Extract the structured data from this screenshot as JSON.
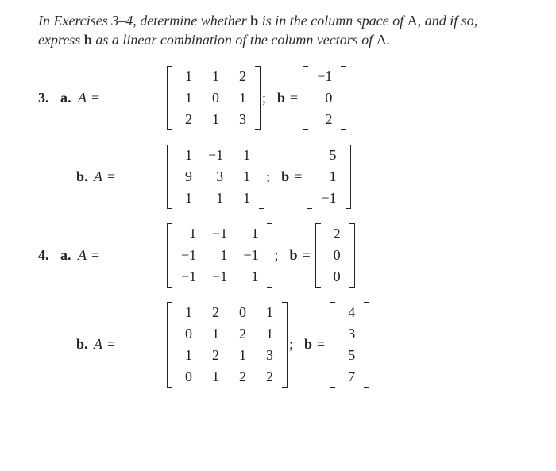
{
  "instructions": {
    "pre": "In Exercises ",
    "range": "3–4,",
    "mid1": " determine whether ",
    "b1": "b",
    "mid2": " is in the column space of ",
    "A": "A",
    "mid3": ", and if so, express ",
    "b2": "b",
    "mid4": " as a linear combination of the column vectors of ",
    "A2": "A",
    "end": "."
  },
  "colors": {
    "background": "#ffffff",
    "text": "#222222"
  },
  "problems": [
    {
      "number": "3.",
      "parts": [
        {
          "label": "a.",
          "A_rows": [
            [
              "1",
              "1",
              "2"
            ],
            [
              "1",
              "0",
              "1"
            ],
            [
              "2",
              "1",
              "3"
            ]
          ],
          "b_rows": [
            [
              "−1"
            ],
            [
              "0"
            ],
            [
              "2"
            ]
          ]
        },
        {
          "label": "b.",
          "A_rows": [
            [
              "1",
              "−1",
              "1"
            ],
            [
              "9",
              "3",
              "1"
            ],
            [
              "1",
              "1",
              "1"
            ]
          ],
          "b_rows": [
            [
              "5"
            ],
            [
              "1"
            ],
            [
              "−1"
            ]
          ]
        }
      ]
    },
    {
      "number": "4.",
      "parts": [
        {
          "label": "a.",
          "A_rows": [
            [
              "1",
              "−1",
              "1"
            ],
            [
              "−1",
              "1",
              "−1"
            ],
            [
              "−1",
              "−1",
              "1"
            ]
          ],
          "b_rows": [
            [
              "2"
            ],
            [
              "0"
            ],
            [
              "0"
            ]
          ]
        },
        {
          "label": "b.",
          "A_rows": [
            [
              "1",
              "2",
              "0",
              "1"
            ],
            [
              "0",
              "1",
              "2",
              "1"
            ],
            [
              "1",
              "2",
              "1",
              "3"
            ],
            [
              "0",
              "1",
              "2",
              "2"
            ]
          ],
          "b_rows": [
            [
              "4"
            ],
            [
              "3"
            ],
            [
              "5"
            ],
            [
              "7"
            ]
          ]
        }
      ]
    }
  ],
  "symbols": {
    "A": "A",
    "b": "b",
    "eq": " = ",
    "semi": ";"
  }
}
